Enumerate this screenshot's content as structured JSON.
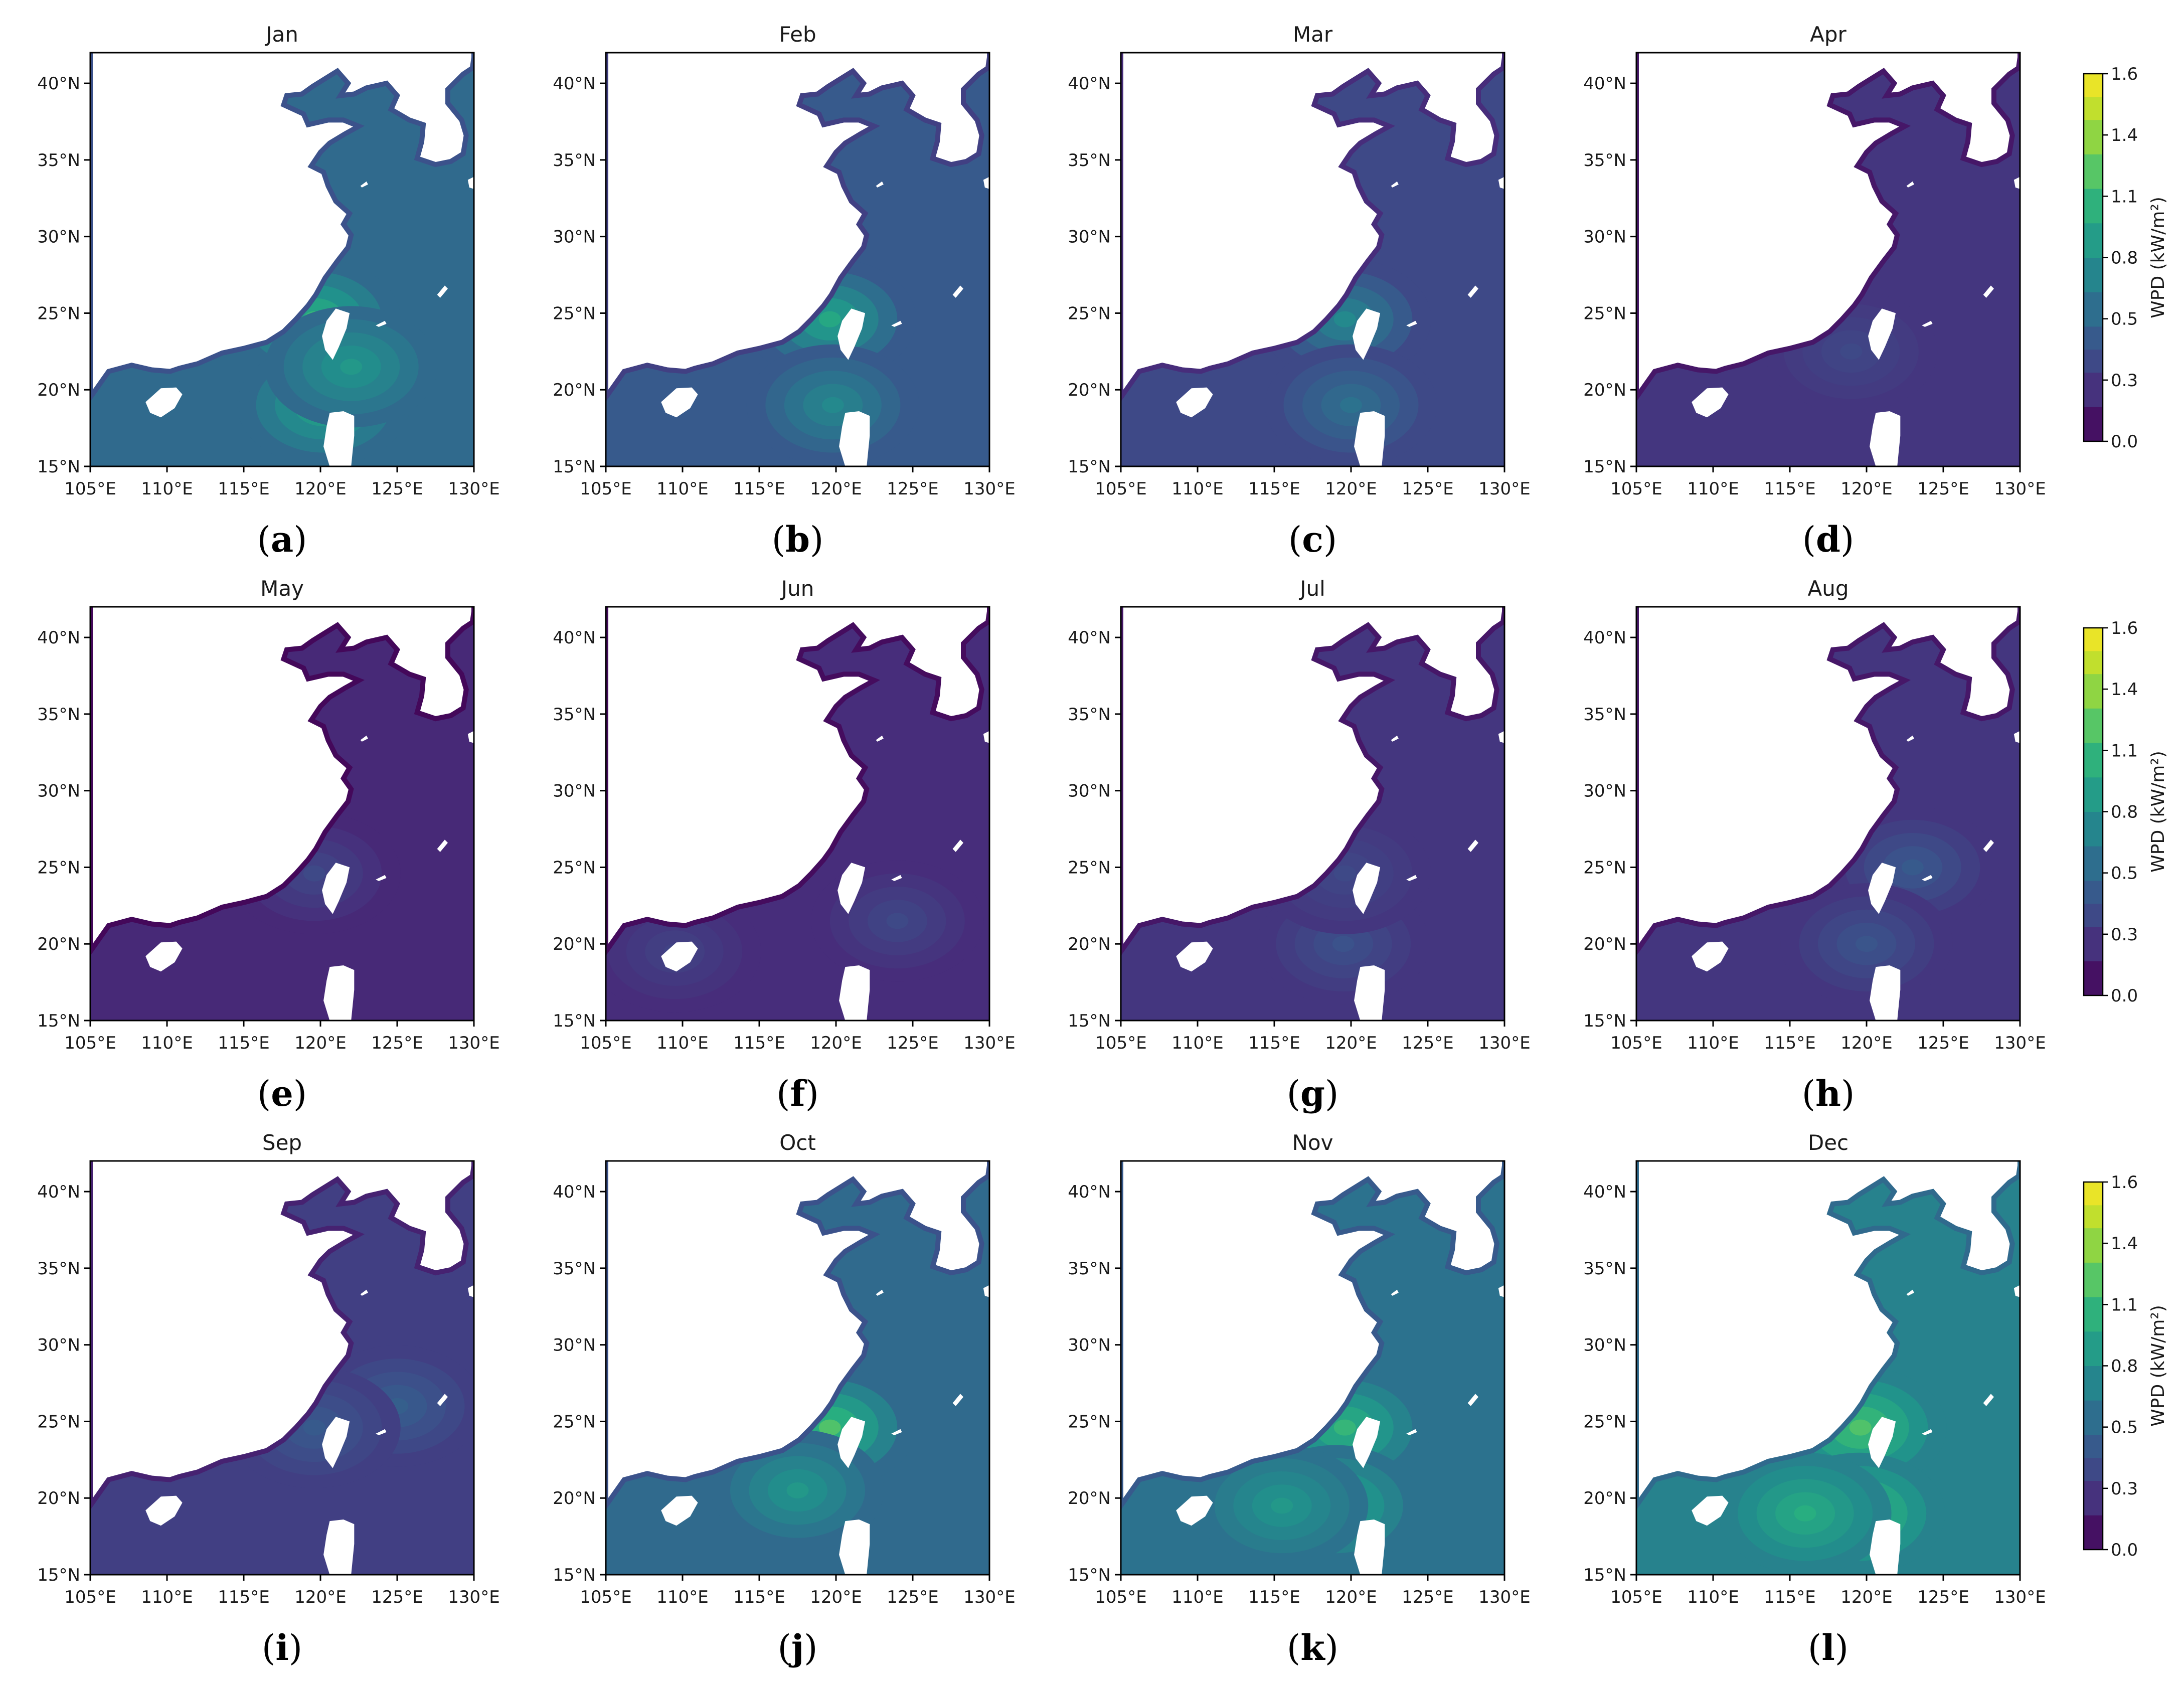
{
  "figure": {
    "panels": [
      {
        "title": "Jan",
        "label": "a",
        "level": 0.55,
        "hotspots": [
          {
            "lon": 119.6,
            "lat": 24.6,
            "value": 1.05
          },
          {
            "lon": 120.2,
            "lat": 19.0,
            "value": 0.95
          },
          {
            "lon": 122.0,
            "lat": 21.5,
            "value": 0.85
          }
        ]
      },
      {
        "title": "Feb",
        "label": "b",
        "level": 0.45,
        "hotspots": [
          {
            "lon": 119.6,
            "lat": 24.6,
            "value": 0.95
          },
          {
            "lon": 119.8,
            "lat": 19.0,
            "value": 0.75
          }
        ]
      },
      {
        "title": "Mar",
        "label": "c",
        "level": 0.35,
        "hotspots": [
          {
            "lon": 119.6,
            "lat": 24.6,
            "value": 0.75
          },
          {
            "lon": 120.0,
            "lat": 19.0,
            "value": 0.6
          }
        ]
      },
      {
        "title": "Apr",
        "label": "d",
        "level": 0.25,
        "hotspots": [
          {
            "lon": 119.0,
            "lat": 22.5,
            "value": 0.35
          }
        ]
      },
      {
        "title": "May",
        "label": "e",
        "level": 0.18,
        "hotspots": [
          {
            "lon": 119.6,
            "lat": 24.6,
            "value": 0.35
          }
        ]
      },
      {
        "title": "Jun",
        "label": "f",
        "level": 0.2,
        "hotspots": [
          {
            "lon": 124.0,
            "lat": 21.5,
            "value": 0.35
          },
          {
            "lon": 109.5,
            "lat": 19.5,
            "value": 0.32
          }
        ]
      },
      {
        "title": "Jul",
        "label": "g",
        "level": 0.25,
        "hotspots": [
          {
            "lon": 119.5,
            "lat": 20.0,
            "value": 0.4
          },
          {
            "lon": 119.6,
            "lat": 24.6,
            "value": 0.35
          }
        ]
      },
      {
        "title": "Aug",
        "label": "h",
        "level": 0.25,
        "hotspots": [
          {
            "lon": 123.0,
            "lat": 25.0,
            "value": 0.45
          },
          {
            "lon": 120.0,
            "lat": 20.0,
            "value": 0.42
          }
        ]
      },
      {
        "title": "Sep",
        "label": "i",
        "level": 0.3,
        "hotspots": [
          {
            "lon": 125.0,
            "lat": 26.0,
            "value": 0.48
          },
          {
            "lon": 119.6,
            "lat": 24.6,
            "value": 0.45
          }
        ]
      },
      {
        "title": "Oct",
        "label": "j",
        "level": 0.55,
        "hotspots": [
          {
            "lon": 119.6,
            "lat": 24.6,
            "value": 1.15
          },
          {
            "lon": 117.5,
            "lat": 20.5,
            "value": 0.85
          }
        ]
      },
      {
        "title": "Nov",
        "label": "k",
        "level": 0.6,
        "hotspots": [
          {
            "lon": 119.6,
            "lat": 24.6,
            "value": 1.05
          },
          {
            "lon": 119.0,
            "lat": 19.5,
            "value": 1.0
          },
          {
            "lon": 115.5,
            "lat": 19.5,
            "value": 0.85
          }
        ]
      },
      {
        "title": "Dec",
        "label": "l",
        "level": 0.7,
        "hotspots": [
          {
            "lon": 119.6,
            "lat": 24.6,
            "value": 1.15
          },
          {
            "lon": 119.5,
            "lat": 19.0,
            "value": 1.15
          },
          {
            "lon": 116.0,
            "lat": 19.0,
            "value": 1.0
          }
        ]
      }
    ],
    "x_ticks": [
      "105°E",
      "110°E",
      "115°E",
      "120°E",
      "125°E",
      "130°E"
    ],
    "y_ticks": [
      "40°N",
      "35°N",
      "30°N",
      "25°N",
      "20°N",
      "15°N"
    ],
    "lon_range": [
      105,
      130
    ],
    "lat_range": [
      15,
      42
    ],
    "colorbar": {
      "label": "WPD (kW/m²)",
      "ticks": [
        "1.6",
        "1.4",
        "1.1",
        "0.8",
        "0.5",
        "0.3",
        "0.0"
      ],
      "range": [
        0.0,
        1.6
      ],
      "levels": [
        0.0,
        0.15,
        0.3,
        0.4,
        0.5,
        0.65,
        0.8,
        0.95,
        1.1,
        1.25,
        1.4,
        1.5,
        1.6
      ],
      "colors": [
        "#440154",
        "#472d7b",
        "#3b528b",
        "#2c728e",
        "#21918c",
        "#28ae80",
        "#5ec962",
        "#addc30",
        "#fde725"
      ]
    }
  }
}
